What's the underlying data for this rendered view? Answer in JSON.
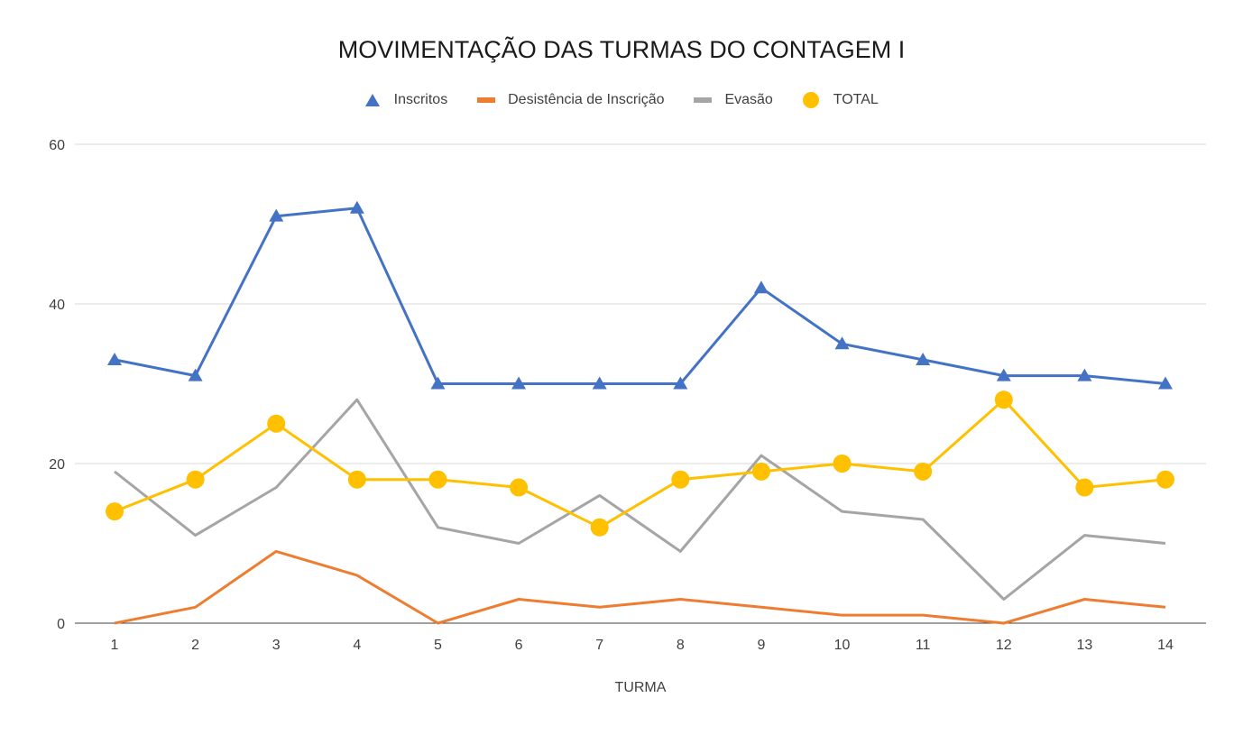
{
  "chart_data": {
    "type": "line",
    "title": "MOVIMENTAÇÃO DAS TURMAS DO CONTAGEM I",
    "xlabel": "TURMA",
    "ylabel": "",
    "categories": [
      "1",
      "2",
      "3",
      "4",
      "5",
      "6",
      "7",
      "8",
      "9",
      "10",
      "11",
      "12",
      "13",
      "14"
    ],
    "ylim": [
      0,
      60
    ],
    "yticks": [
      "0",
      "20",
      "40",
      "60"
    ],
    "grid": true,
    "legend_position": "top",
    "series": [
      {
        "name": "Inscritos",
        "color": "#4472C4",
        "marker": "triangle",
        "values": [
          33,
          31,
          51,
          52,
          30,
          30,
          30,
          30,
          42,
          35,
          33,
          31,
          31,
          30
        ]
      },
      {
        "name": "Desistência de Inscrição",
        "color": "#ED7D31",
        "marker": "none",
        "values": [
          0,
          2,
          9,
          6,
          0,
          3,
          2,
          3,
          2,
          1,
          1,
          0,
          3,
          2
        ]
      },
      {
        "name": "Evasão",
        "color": "#A5A5A5",
        "marker": "none",
        "values": [
          19,
          11,
          17,
          28,
          12,
          10,
          16,
          9,
          21,
          14,
          13,
          3,
          11,
          10
        ]
      },
      {
        "name": "TOTAL",
        "color": "#FFC000",
        "marker": "circle",
        "values": [
          14,
          18,
          25,
          18,
          18,
          17,
          12,
          18,
          19,
          20,
          19,
          28,
          17,
          18
        ]
      }
    ]
  }
}
